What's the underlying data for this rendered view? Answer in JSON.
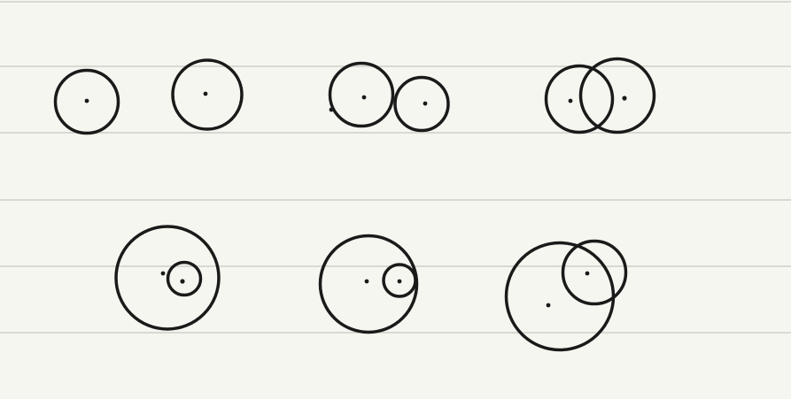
{
  "page": {
    "background_color": "#f6f6f1",
    "rule_color": "#d9d9d4",
    "ink_color": "#1a1a1a"
  },
  "diagram": {
    "description_kind": "hand-drawn circle position relationships",
    "row_1": [
      {
        "figure": "single-circle-a",
        "circles": 1
      },
      {
        "figure": "single-circle-b",
        "circles": 1
      },
      {
        "figure": "externally-tangent-pair",
        "circles": 2
      },
      {
        "figure": "intersecting-pair",
        "circles": 2
      }
    ],
    "row_2": [
      {
        "figure": "contained-pair",
        "circles": 2
      },
      {
        "figure": "internally-tangent-pair",
        "circles": 2
      },
      {
        "figure": "overlapping-large-small-pair",
        "circles": 2
      }
    ]
  }
}
